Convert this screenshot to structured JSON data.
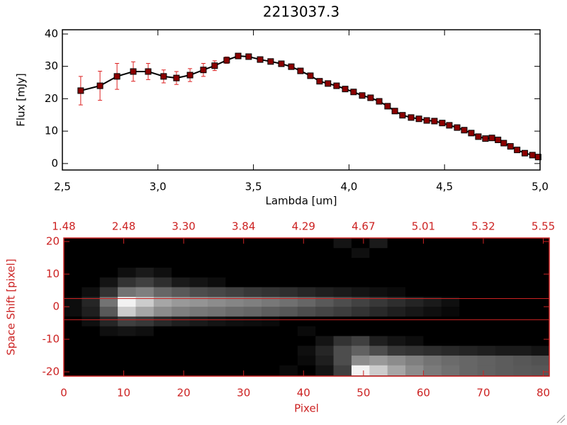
{
  "chart_data": [
    {
      "type": "line",
      "title": "2213037.3",
      "xlabel": "Lambda [um]",
      "ylabel": "Flux [mJy]",
      "xlim": [
        2.5,
        5.0
      ],
      "ylim": [
        -2,
        41.3
      ],
      "xticks": [
        {
          "value": 2.5,
          "label": "2,5"
        },
        {
          "value": 3.0,
          "label": "3,0"
        },
        {
          "value": 3.5,
          "label": "3,5"
        },
        {
          "value": 4.0,
          "label": "4,0"
        },
        {
          "value": 4.5,
          "label": "4,5"
        },
        {
          "value": 5.0,
          "label": "5,0"
        }
      ],
      "yticks": [
        0,
        10,
        20,
        30,
        40
      ],
      "axis_color": "#000000",
      "series": [
        {
          "color": "#000000",
          "marker_color": "#8b0000",
          "error_color": "#dd2222",
          "x": [
            2.596,
            2.697,
            2.786,
            2.871,
            2.949,
            3.03,
            3.097,
            3.168,
            3.238,
            3.297,
            3.36,
            3.42,
            3.475,
            3.535,
            3.59,
            3.646,
            3.698,
            3.746,
            3.798,
            3.846,
            3.89,
            3.935,
            3.98,
            4.024,
            4.069,
            4.113,
            4.158,
            4.202,
            4.24,
            4.28,
            4.325,
            4.366,
            4.407,
            4.447,
            4.488,
            4.525,
            4.566,
            4.603,
            4.64,
            4.677,
            4.714,
            4.748,
            4.78,
            4.81,
            4.845,
            4.88,
            4.92,
            4.96,
            4.99
          ],
          "values": [
            22.5,
            24.0,
            26.9,
            28.4,
            28.4,
            26.9,
            26.4,
            27.3,
            28.9,
            30.2,
            31.9,
            33.2,
            33.0,
            32.1,
            31.5,
            30.8,
            29.9,
            28.6,
            27.1,
            25.4,
            24.7,
            24.0,
            23.0,
            22.1,
            21.0,
            20.3,
            19.2,
            17.7,
            16.2,
            14.9,
            14.2,
            13.8,
            13.3,
            13.1,
            12.5,
            11.8,
            11.1,
            10.3,
            9.4,
            8.3,
            7.7,
            7.9,
            7.3,
            6.3,
            5.3,
            4.2,
            3.2,
            2.6,
            2.0
          ],
          "errors": [
            4.4,
            4.5,
            4.0,
            3.0,
            2.5,
            2.0,
            2.0,
            2.0,
            2.0,
            1.5,
            1.0,
            0.5,
            0.4,
            0.4,
            0.3,
            0.3,
            0.3,
            0.3,
            0.3,
            0.3,
            0.3,
            0.3,
            0.3,
            0.3,
            0.3,
            0.3,
            0.3,
            0.3,
            0.3,
            0.3,
            0.3,
            0.3,
            0.3,
            0.3,
            0.3,
            0.3,
            0.3,
            0.3,
            0.3,
            0.3,
            0.3,
            0.3,
            0.3,
            0.3,
            0.3,
            0.3,
            0.3,
            0.3,
            0.3
          ]
        }
      ]
    },
    {
      "type": "heatmap",
      "xlabel": "Pixel",
      "ylabel": "Space Shift [pixel]",
      "xlim": [
        0,
        81
      ],
      "ylim": [
        -21.3,
        21.1
      ],
      "xticks": [
        0,
        10,
        20,
        30,
        40,
        50,
        60,
        70,
        80
      ],
      "yticks": [
        -20,
        -10,
        0,
        10,
        20
      ],
      "x2ticks": [
        {
          "value": 0,
          "label": "1.48"
        },
        {
          "value": 10,
          "label": "2.48"
        },
        {
          "value": 20,
          "label": "3.30"
        },
        {
          "value": 30,
          "label": "3.84"
        },
        {
          "value": 40,
          "label": "4.29"
        },
        {
          "value": 50,
          "label": "4.67"
        },
        {
          "value": 60,
          "label": "5.01"
        },
        {
          "value": 70,
          "label": "5.32"
        },
        {
          "value": 80,
          "label": "5.55"
        }
      ],
      "axis_color": "#cc2222",
      "hlines": [
        2.5,
        -4
      ],
      "hline_color": "#cc2222",
      "x": [
        1.5,
        4.5,
        7.5,
        10.5,
        13.5,
        16.5,
        19.5,
        22.5,
        25.5,
        28.5,
        31.5,
        34.5,
        37.5,
        40.5,
        43.5,
        46.5,
        49.5,
        52.5,
        55.5,
        58.5,
        61.5,
        64.5,
        67.5,
        70.5,
        73.5,
        76.5,
        79.5
      ],
      "y": [
        19.5,
        16.5,
        13.5,
        10.5,
        7.5,
        4.5,
        1.5,
        -1.5,
        -4.5,
        -7.5,
        -10.5,
        -13.5,
        -16.5,
        -19.5
      ],
      "z": [
        [
          0,
          0,
          0,
          0,
          0,
          0,
          0,
          0,
          0,
          0,
          0,
          0,
          0,
          0,
          0,
          8,
          0,
          10,
          0,
          0,
          0,
          0,
          0,
          0,
          0,
          0,
          0
        ],
        [
          0,
          0,
          0,
          0,
          0,
          0,
          0,
          0,
          0,
          0,
          0,
          0,
          0,
          0,
          0,
          0,
          6,
          0,
          0,
          0,
          0,
          0,
          0,
          0,
          0,
          0,
          0
        ],
        [
          0,
          0,
          0,
          0,
          0,
          0,
          0,
          0,
          0,
          0,
          0,
          0,
          0,
          0,
          0,
          0,
          0,
          0,
          0,
          0,
          0,
          0,
          0,
          0,
          0,
          0,
          0
        ],
        [
          0,
          0,
          0,
          6,
          10,
          6,
          0,
          0,
          0,
          0,
          0,
          0,
          0,
          0,
          0,
          0,
          0,
          0,
          0,
          0,
          0,
          0,
          0,
          0,
          0,
          0,
          0
        ],
        [
          0,
          0,
          8,
          20,
          25,
          18,
          10,
          8,
          5,
          0,
          0,
          0,
          0,
          0,
          0,
          0,
          0,
          0,
          0,
          0,
          0,
          0,
          0,
          0,
          0,
          0,
          0
        ],
        [
          0,
          6,
          20,
          45,
          50,
          40,
          35,
          30,
          28,
          25,
          22,
          20,
          18,
          15,
          12,
          10,
          8,
          6,
          4,
          0,
          0,
          0,
          0,
          0,
          0,
          0,
          0
        ],
        [
          5,
          15,
          45,
          95,
          80,
          65,
          60,
          58,
          55,
          52,
          50,
          47,
          44,
          40,
          35,
          30,
          26,
          22,
          18,
          14,
          10,
          6,
          0,
          0,
          0,
          0,
          0
        ],
        [
          5,
          12,
          35,
          80,
          65,
          55,
          50,
          47,
          45,
          42,
          40,
          37,
          34,
          30,
          27,
          24,
          20,
          16,
          12,
          9,
          6,
          3,
          0,
          0,
          0,
          0,
          0
        ],
        [
          0,
          6,
          15,
          25,
          22,
          16,
          12,
          10,
          8,
          6,
          5,
          4,
          0,
          0,
          0,
          0,
          0,
          0,
          0,
          0,
          0,
          0,
          0,
          0,
          0,
          0,
          0
        ],
        [
          0,
          0,
          6,
          8,
          6,
          0,
          0,
          0,
          0,
          0,
          0,
          0,
          0,
          4,
          0,
          0,
          0,
          0,
          0,
          0,
          0,
          0,
          0,
          0,
          0,
          0,
          0
        ],
        [
          0,
          0,
          0,
          0,
          0,
          0,
          0,
          0,
          0,
          0,
          0,
          0,
          0,
          0,
          8,
          20,
          25,
          12,
          8,
          5,
          0,
          0,
          0,
          0,
          0,
          0,
          0
        ],
        [
          0,
          0,
          0,
          0,
          0,
          0,
          0,
          0,
          0,
          0,
          0,
          0,
          0,
          6,
          15,
          30,
          38,
          30,
          22,
          20,
          18,
          16,
          14,
          12,
          10,
          10,
          8
        ],
        [
          0,
          0,
          0,
          0,
          0,
          0,
          0,
          0,
          0,
          0,
          0,
          0,
          0,
          4,
          12,
          30,
          55,
          60,
          55,
          50,
          45,
          42,
          40,
          38,
          36,
          34,
          32
        ],
        [
          0,
          0,
          0,
          0,
          0,
          0,
          0,
          0,
          0,
          0,
          0,
          0,
          4,
          0,
          8,
          25,
          95,
          80,
          65,
          55,
          48,
          44,
          40,
          38,
          36,
          35,
          34
        ]
      ]
    }
  ]
}
